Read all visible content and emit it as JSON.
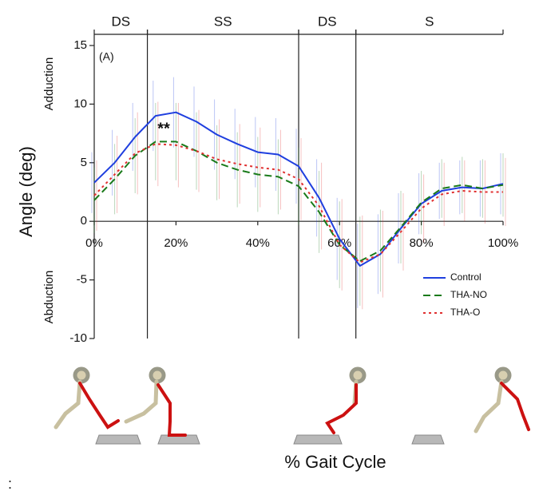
{
  "chart_data": {
    "type": "line",
    "x_label": "% Gait Cycle",
    "y_label": "Angle (deg)",
    "y_annotations": [
      "Adduction",
      "Abduction"
    ],
    "panel_label": "(A)",
    "significance": "**",
    "significance_at": 17,
    "footnote": ":",
    "phases": [
      {
        "label": "DS",
        "start": 0,
        "end": 13
      },
      {
        "label": "SS",
        "start": 13,
        "end": 50
      },
      {
        "label": "DS",
        "start": 50,
        "end": 64
      },
      {
        "label": "S",
        "start": 64,
        "end": 100
      }
    ],
    "x": [
      0,
      5,
      10,
      15,
      20,
      25,
      30,
      35,
      40,
      45,
      50,
      55,
      60,
      65,
      70,
      75,
      80,
      85,
      90,
      95,
      100
    ],
    "xlim": [
      0,
      100
    ],
    "xticks": [
      {
        "value": 0,
        "label": "0%"
      },
      {
        "value": 20,
        "label": "20%"
      },
      {
        "value": 40,
        "label": "40%"
      },
      {
        "value": 60,
        "label": "60%"
      },
      {
        "value": 80,
        "label": "80%"
      },
      {
        "value": 100,
        "label": "100%"
      }
    ],
    "ylim": [
      -10,
      15
    ],
    "yticks": [
      -10,
      -5,
      0,
      5,
      10,
      15
    ],
    "legend": "lower right",
    "series": [
      {
        "name": "Control",
        "color": "#1f3fdf",
        "style": "solid",
        "values": [
          3.3,
          5.0,
          7.2,
          9.0,
          9.3,
          8.5,
          7.4,
          6.6,
          5.9,
          5.7,
          4.7,
          2.0,
          -1.5,
          -3.8,
          -2.8,
          -0.6,
          1.5,
          2.6,
          2.9,
          2.8,
          3.2
        ],
        "errors": [
          2.6,
          2.8,
          2.9,
          3.0,
          3.0,
          3.0,
          3.0,
          3.0,
          3.0,
          3.1,
          3.2,
          3.3,
          3.5,
          3.6,
          3.4,
          3.0,
          2.6,
          2.4,
          2.3,
          2.4,
          2.6
        ]
      },
      {
        "name": "THA-NO",
        "color": "#1a7a1a",
        "style": "dashed",
        "values": [
          1.8,
          3.6,
          5.6,
          6.8,
          6.8,
          6.0,
          5.0,
          4.4,
          4.0,
          3.8,
          3.0,
          0.8,
          -2.0,
          -3.4,
          -2.5,
          -0.5,
          1.6,
          2.8,
          3.1,
          2.8,
          3.1
        ],
        "errors": [
          2.8,
          3.0,
          3.2,
          3.3,
          3.3,
          3.3,
          3.2,
          3.2,
          3.2,
          3.2,
          3.3,
          3.5,
          3.7,
          3.8,
          3.5,
          3.1,
          2.7,
          2.5,
          2.4,
          2.5,
          2.7
        ]
      },
      {
        "name": "THA-O",
        "color": "#e03030",
        "style": "dotted",
        "values": [
          2.2,
          4.0,
          5.8,
          6.6,
          6.5,
          6.0,
          5.3,
          4.9,
          4.6,
          4.4,
          3.6,
          1.3,
          -2.0,
          -3.5,
          -2.8,
          -0.9,
          1.1,
          2.3,
          2.6,
          2.5,
          2.5
        ],
        "errors": [
          3.0,
          3.3,
          3.5,
          3.6,
          3.6,
          3.5,
          3.4,
          3.4,
          3.4,
          3.4,
          3.5,
          3.7,
          3.9,
          4.0,
          3.7,
          3.3,
          2.9,
          2.7,
          2.6,
          2.7,
          2.9
        ]
      }
    ]
  }
}
